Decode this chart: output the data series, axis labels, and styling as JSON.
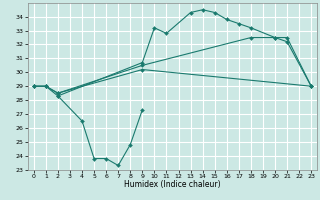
{
  "title": "",
  "xlabel": "Humidex (Indice chaleur)",
  "bg_color": "#cce8e4",
  "grid_color": "#ffffff",
  "line_color": "#1a7a6e",
  "xlim": [
    -0.5,
    23.5
  ],
  "ylim": [
    23,
    35
  ],
  "xticks": [
    0,
    1,
    2,
    3,
    4,
    5,
    6,
    7,
    8,
    9,
    10,
    11,
    12,
    13,
    14,
    15,
    16,
    17,
    18,
    19,
    20,
    21,
    22,
    23
  ],
  "yticks": [
    23,
    24,
    25,
    26,
    27,
    28,
    29,
    30,
    31,
    32,
    33,
    34
  ],
  "series": [
    {
      "x": [
        0,
        1,
        2,
        9,
        10,
        11,
        13,
        14,
        15,
        16,
        17,
        18,
        20,
        21,
        23
      ],
      "y": [
        29.0,
        29.0,
        28.3,
        30.7,
        33.2,
        32.8,
        34.3,
        34.5,
        34.3,
        33.8,
        33.5,
        33.2,
        32.5,
        32.5,
        29.0
      ]
    },
    {
      "x": [
        0,
        1,
        2,
        9,
        18,
        20,
        21,
        23
      ],
      "y": [
        29.0,
        29.0,
        28.5,
        30.5,
        32.5,
        32.5,
        32.2,
        29.0
      ]
    },
    {
      "x": [
        0,
        1,
        2,
        9,
        23
      ],
      "y": [
        29.0,
        29.0,
        28.5,
        30.2,
        29.0
      ]
    },
    {
      "x": [
        2,
        4,
        5,
        6,
        7,
        8,
        9
      ],
      "y": [
        28.3,
        26.5,
        23.8,
        23.8,
        23.3,
        24.8,
        27.3
      ]
    }
  ]
}
